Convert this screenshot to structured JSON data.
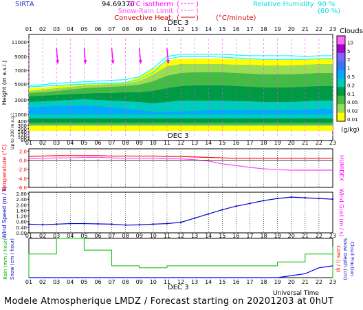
{
  "header": {
    "site": "SIRTA",
    "station_code": "94.69370",
    "legend": [
      {
        "label": "0°C isotherm",
        "style": "(----)",
        "color": "#ff00ff"
      },
      {
        "label": "Snow-Rain Limit",
        "style": "(----)",
        "color": "#ff55ff"
      },
      {
        "label": "Convective Heat.",
        "style": "(----)",
        "color": "#cc0000",
        "unit": "(°C/minute)"
      },
      {
        "label": "Relative Humidity",
        "style": "",
        "color": "#00ffff"
      }
    ],
    "rh_levels": [
      "90 %",
      "(60 %)"
    ]
  },
  "time_axis": {
    "hours": [
      "01",
      "02",
      "03",
      "04",
      "05",
      "06",
      "07",
      "08",
      "09",
      "10",
      "11",
      "12",
      "13",
      "14",
      "15",
      "16",
      "17",
      "18",
      "19",
      "20",
      "21",
      "22",
      "23"
    ],
    "date_label": "DEC 3",
    "xlabel": "Universal Time"
  },
  "footer": "Modele Atmospherique LMDZ / Forecast starting on 20201203 at 0hUT",
  "colorbar": {
    "title": "Clouds",
    "unit": "(g/kg)",
    "levels": [
      "10",
      "5",
      "2",
      "1",
      "0.5",
      "0.2",
      "0.1",
      "0.05",
      "0.02",
      "0.01"
    ],
    "colors": [
      "#ff66ff",
      "#aa00cc",
      "#7766ff",
      "#3377ff",
      "#00aaff",
      "#00ccbb",
      "#009944",
      "#44bb44",
      "#99dd55",
      "#ffff00"
    ]
  },
  "chart_data": [
    {
      "type": "heatmap",
      "name": "clouds",
      "ylabel": "Height (m a.s.l.)",
      "ylabel2": "Up to 200 m a.g.l.",
      "yticks": [
        "11000",
        "9000",
        "7000",
        "5000",
        "3000",
        "1000",
        "400",
        "300",
        "200",
        "140",
        "120",
        "100",
        "80",
        "60",
        "40",
        "20"
      ],
      "relative_humidity_90_m": [
        4800,
        4900,
        5000,
        5100,
        5200,
        5250,
        5300,
        5400,
        5800,
        6800,
        8600,
        9000,
        9000,
        9000,
        8900,
        8800,
        8700,
        8600,
        8600,
        8600,
        8600,
        8700,
        8700
      ],
      "relative_humidity_60_m": [
        5000,
        5100,
        5300,
        5400,
        5500,
        5600,
        5700,
        5800,
        6200,
        7400,
        9000,
        9300,
        9300,
        9300,
        9300,
        9200,
        9100,
        9100,
        9100,
        9100,
        9000,
        9100,
        9100
      ]
    },
    {
      "type": "line",
      "name": "temperature",
      "ylabel": "Temperature (°C)",
      "ylabel2": "HUMIDEX",
      "yticks": [
        "2.0",
        "0.0",
        "-2.0",
        "-4.0",
        "-6.0"
      ],
      "ylim": [
        -6,
        2.5
      ],
      "series": [
        {
          "color": "#ff0000",
          "values": [
            0.8,
            0.9,
            1.0,
            1.0,
            1.0,
            1.0,
            0.9,
            0.9,
            0.9,
            0.9,
            0.8,
            0.8,
            0.7,
            0.6,
            0.5,
            0.4,
            0.4,
            0.4,
            0.4,
            0.4,
            0.4,
            0.4,
            0.4
          ]
        },
        {
          "color": "#ff44ff",
          "values": [
            0.3,
            0.4,
            0.5,
            0.5,
            0.6,
            0.6,
            0.5,
            0.4,
            0.4,
            0.4,
            0.3,
            0.3,
            0.1,
            -0.2,
            -0.8,
            -1.2,
            -1.6,
            -1.9,
            -2.1,
            -2.2,
            -2.2,
            -2.2,
            -2.2
          ]
        }
      ]
    },
    {
      "type": "line",
      "name": "wind",
      "ylabel": "Wind Speed (m / s)",
      "ylabel2": "Wind Gust (m / s)",
      "yticks": [
        "2.80",
        "2.40",
        "2.00",
        "1.60",
        "1.20",
        "0.80",
        "0.40",
        "0.00"
      ],
      "ylim": [
        0,
        2.9
      ],
      "series": [
        {
          "color": "#0000cc",
          "values": [
            0.62,
            0.58,
            0.62,
            0.66,
            0.66,
            0.64,
            0.62,
            0.55,
            0.57,
            0.62,
            0.66,
            0.75,
            1.05,
            1.35,
            1.65,
            1.9,
            2.1,
            2.3,
            2.45,
            2.55,
            2.5,
            2.45,
            2.4
          ]
        }
      ]
    },
    {
      "type": "bar",
      "name": "rain",
      "ylabel": "Rain (mm / hour)",
      "ylabel2": "Snow (cm / hour)",
      "ylabel3": "CAPE (J / g)",
      "ylabel4": "Snow Depth (cm)",
      "ylabel5": "Cloud Fraction",
      "series": [
        {
          "color": "#00bb00",
          "values": [
            0.6,
            0.6,
            1.0,
            1.0,
            0.7,
            0.7,
            0.3,
            0.3,
            0.25,
            0.25,
            0.3,
            0.3,
            0.3,
            0.3,
            0.3,
            0.3,
            0.3,
            0.3,
            0.4,
            0.4,
            0.6,
            0.6,
            0.8
          ]
        },
        {
          "color": "#0000ff",
          "values": [
            0,
            0,
            0,
            0,
            0,
            0,
            0,
            0,
            0,
            0,
            0,
            0,
            0,
            0,
            0,
            0,
            0,
            0,
            0,
            0.05,
            0.1,
            0.25,
            0.3
          ]
        }
      ]
    }
  ]
}
